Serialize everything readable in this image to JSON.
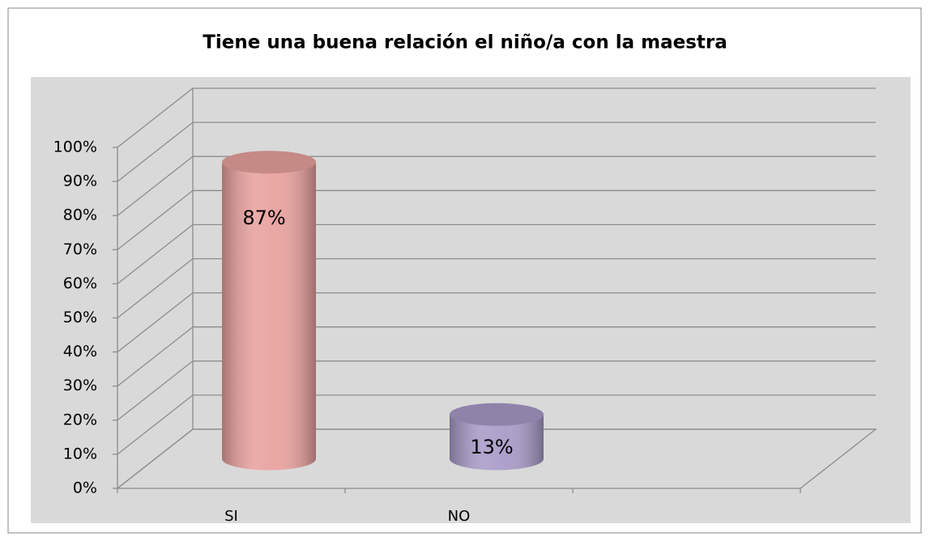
{
  "chart_data": {
    "type": "bar3d",
    "title": "Tiene una buena relación el niño/a con la maestra",
    "categories": [
      "SI",
      "NO",
      null
    ],
    "values": [
      87,
      13,
      null
    ],
    "value_labels": [
      "87%",
      "13%",
      null
    ],
    "colors": [
      "#e8a19e",
      "#a99bc8",
      null
    ],
    "ylim": [
      0,
      100
    ],
    "yticks": [
      {
        "value": 0,
        "label": "0%"
      },
      {
        "value": 10,
        "label": "10%"
      },
      {
        "value": 20,
        "label": "20%"
      },
      {
        "value": 30,
        "label": "30%"
      },
      {
        "value": 40,
        "label": "40%"
      },
      {
        "value": 50,
        "label": "50%"
      },
      {
        "value": 60,
        "label": "60%"
      },
      {
        "value": 70,
        "label": "70%"
      },
      {
        "value": 80,
        "label": "80%"
      },
      {
        "value": 90,
        "label": "90%"
      },
      {
        "value": 100,
        "label": "100%"
      }
    ],
    "grid": true
  }
}
